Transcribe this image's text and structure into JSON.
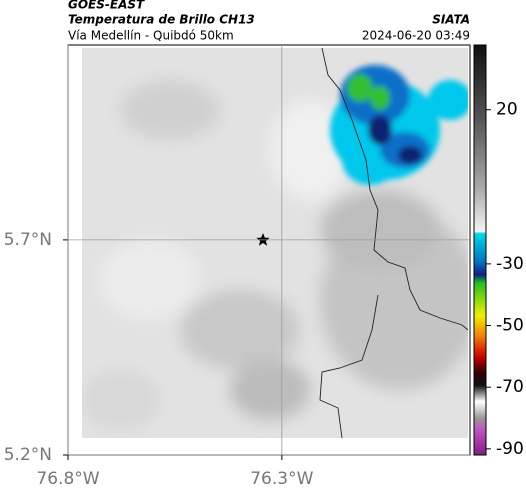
{
  "header": {
    "source": "GOES-EAST",
    "product": "Temperatura de Brillo CH13",
    "agency": "SIATA",
    "region": "Vía Medellín - Quibdó 50km",
    "timestamp": "2024-06-20 03:49"
  },
  "map": {
    "lat_range": [
      5.2,
      6.153
    ],
    "lon_range": [
      -76.8,
      -75.86
    ],
    "lat_ticks": [
      {
        "value": 5.7,
        "label": "5.7°N"
      },
      {
        "value": 5.2,
        "label": "5.2°N"
      }
    ],
    "lon_ticks": [
      {
        "value": -76.8,
        "label": "76.8°W"
      },
      {
        "value": -76.3,
        "label": "76.3°W"
      }
    ]
  },
  "colorbar": {
    "range": [
      -92,
      41
    ],
    "ticks": [
      20,
      -30,
      -50,
      -70,
      -90
    ]
  }
}
